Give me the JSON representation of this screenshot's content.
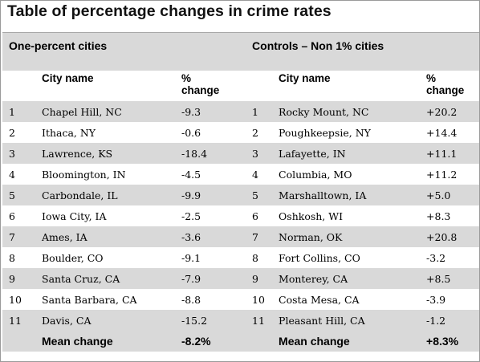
{
  "title": "Table of percentage changes in crime rates",
  "left_group": "One-percent cities",
  "right_group": "Controls – Non 1% cities",
  "headers": {
    "city": "City name",
    "pct_line1": "%",
    "pct_line2": "change"
  },
  "rows": [
    {
      "n1": "1",
      "city1": "Chapel Hill, NC",
      "p1": "-9.3",
      "n2": "1",
      "city2": "Rocky Mount, NC",
      "p2": "+20.2"
    },
    {
      "n1": "2",
      "city1": "Ithaca, NY",
      "p1": "-0.6",
      "n2": "2",
      "city2": "Poughkeepsie, NY",
      "p2": "+14.4"
    },
    {
      "n1": "3",
      "city1": "Lawrence, KS",
      "p1": "-18.4",
      "n2": "3",
      "city2": "Lafayette, IN",
      "p2": "+11.1"
    },
    {
      "n1": "4",
      "city1": "Bloomington, IN",
      "p1": "-4.5",
      "n2": "4",
      "city2": "Columbia, MO",
      "p2": "+11.2"
    },
    {
      "n1": "5",
      "city1": "Carbondale, IL",
      "p1": "-9.9",
      "n2": "5",
      "city2": "Marshalltown, IA",
      "p2": "+5.0"
    },
    {
      "n1": "6",
      "city1": "Iowa City, IA",
      "p1": "-2.5",
      "n2": "6",
      "city2": "Oshkosh, WI",
      "p2": "+8.3"
    },
    {
      "n1": "7",
      "city1": "Ames, IA",
      "p1": "-3.6",
      "n2": "7",
      "city2": "Norman, OK",
      "p2": "+20.8"
    },
    {
      "n1": "8",
      "city1": "Boulder, CO",
      "p1": "-9.1",
      "n2": "8",
      "city2": "Fort Collins, CO",
      "p2": "-3.2"
    },
    {
      "n1": "9",
      "city1": "Santa Cruz, CA",
      "p1": "-7.9",
      "n2": "9",
      "city2": "Monterey, CA",
      "p2": "+8.5"
    },
    {
      "n1": "10",
      "city1": "Santa Barbara, CA",
      "p1": "-8.8",
      "n2": "10",
      "city2": "Costa Mesa, CA",
      "p2": "-3.9"
    },
    {
      "n1": "11",
      "city1": "Davis, CA",
      "p1": "-15.2",
      "n2": "11",
      "city2": "Pleasant Hill, CA",
      "p2": "-1.2"
    }
  ],
  "mean": {
    "label": "Mean change",
    "left_value": "-8.2%",
    "right_value": "+8.3%"
  },
  "colors": {
    "shade": "#d9d9d9",
    "border": "#9a9a9a"
  }
}
